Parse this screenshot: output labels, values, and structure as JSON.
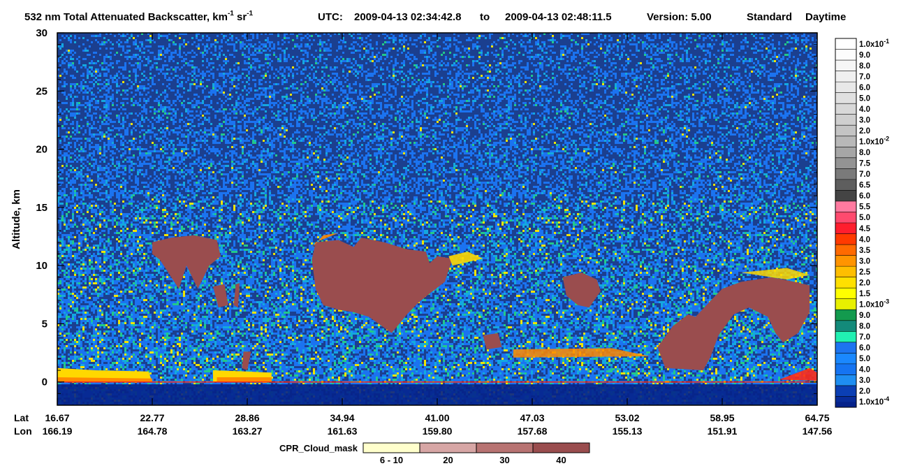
{
  "header": {
    "product": "532 nm Total Attenuated Backscatter, km",
    "unit_exp_1": "-1",
    "unit_sr": " sr",
    "unit_exp_2": "-1",
    "utc_label": "UTC:",
    "utc_start": "2009-04-13 02:34:42.8",
    "utc_to": "to",
    "utc_end": "2009-04-13 02:48:11.5",
    "version_label": "Version: 5.00",
    "standard_label": "Standard",
    "daytime_label": "Daytime"
  },
  "chart_data": {
    "type": "heatmap",
    "ylabel": "Altitude, km",
    "ylim": [
      -2,
      30
    ],
    "y_ticks": [
      0,
      5,
      10,
      15,
      20,
      25,
      30
    ],
    "x_row_labels": [
      "Lat",
      "Lon"
    ],
    "lat_ticks": [
      "16.67",
      "22.77",
      "28.86",
      "34.94",
      "41.00",
      "47.03",
      "53.02",
      "58.95",
      "64.75"
    ],
    "lon_ticks": [
      "166.19",
      "164.78",
      "163.27",
      "161.63",
      "159.80",
      "157.68",
      "155.13",
      "151.91",
      "147.56"
    ],
    "colorbar": {
      "entries": [
        {
          "label": "1.0x10",
          "exp": "-1",
          "color": "#ffffff"
        },
        {
          "label": "9.0",
          "color": "#fcfcfc"
        },
        {
          "label": "8.0",
          "color": "#f6f6f6"
        },
        {
          "label": "7.0",
          "color": "#f0f0f0"
        },
        {
          "label": "6.0",
          "color": "#e8e8e8"
        },
        {
          "label": "5.0",
          "color": "#e0e0e0"
        },
        {
          "label": "4.0",
          "color": "#d8d8d8"
        },
        {
          "label": "3.0",
          "color": "#cfcfcf"
        },
        {
          "label": "2.0",
          "color": "#c4c4c4"
        },
        {
          "label": "1.0x10",
          "exp": "-2",
          "color": "#b8b8b8"
        },
        {
          "label": "8.0",
          "color": "#a6a6a6"
        },
        {
          "label": "7.5",
          "color": "#939393"
        },
        {
          "label": "7.0",
          "color": "#7a7a7a"
        },
        {
          "label": "6.5",
          "color": "#5e5e5e"
        },
        {
          "label": "6.0",
          "color": "#444444"
        },
        {
          "label": "5.5",
          "color": "#ff7aa0"
        },
        {
          "label": "5.0",
          "color": "#ff4a6e"
        },
        {
          "label": "4.5",
          "color": "#ff1e2e"
        },
        {
          "label": "4.0",
          "color": "#ff3a00"
        },
        {
          "label": "3.5",
          "color": "#ff6a00"
        },
        {
          "label": "3.0",
          "color": "#ff9400"
        },
        {
          "label": "2.5",
          "color": "#ffbe00"
        },
        {
          "label": "2.0",
          "color": "#ffe000"
        },
        {
          "label": "1.5",
          "color": "#ffff00"
        },
        {
          "label": "1.0x10",
          "exp": "-3",
          "color": "#e8f000"
        },
        {
          "label": "9.0",
          "color": "#139a4e"
        },
        {
          "label": "8.0",
          "color": "#138a7a"
        },
        {
          "label": "7.0",
          "color": "#21f0b2"
        },
        {
          "label": "6.0",
          "color": "#1d74f0"
        },
        {
          "label": "5.0",
          "color": "#1a88ff"
        },
        {
          "label": "4.0",
          "color": "#1574f2"
        },
        {
          "label": "3.0",
          "color": "#1e8ef2"
        },
        {
          "label": "2.0",
          "color": "#0b3fb4"
        },
        {
          "label": "1.0x10",
          "exp": "-4",
          "color": "#082c9a"
        }
      ],
      "bottom_color": "#05228a"
    },
    "cloud_mask_legend": {
      "title": "CPR_Cloud_mask",
      "bins": [
        {
          "label": "6 - 10",
          "color": "#ffffcc"
        },
        {
          "label": "20",
          "color": "#d7a6a5"
        },
        {
          "label": "30",
          "color": "#b87372"
        },
        {
          "label": "40",
          "color": "#9a4d4e"
        }
      ]
    },
    "palette": {
      "background": "#1b3f8f",
      "noise_blue": "#1b73f0",
      "noise_cyan": "#14a8e0",
      "noise_green": "#22c98a",
      "noise_yellow": "#f0e400",
      "surface_blue": "#05228a",
      "aerosol_yellow": "#ffd800",
      "aerosol_orange": "#ff8a00",
      "aerosol_red": "#ff2a1a",
      "cloud": "#9a4d4e",
      "cloud_light": "#c08a8a"
    }
  }
}
